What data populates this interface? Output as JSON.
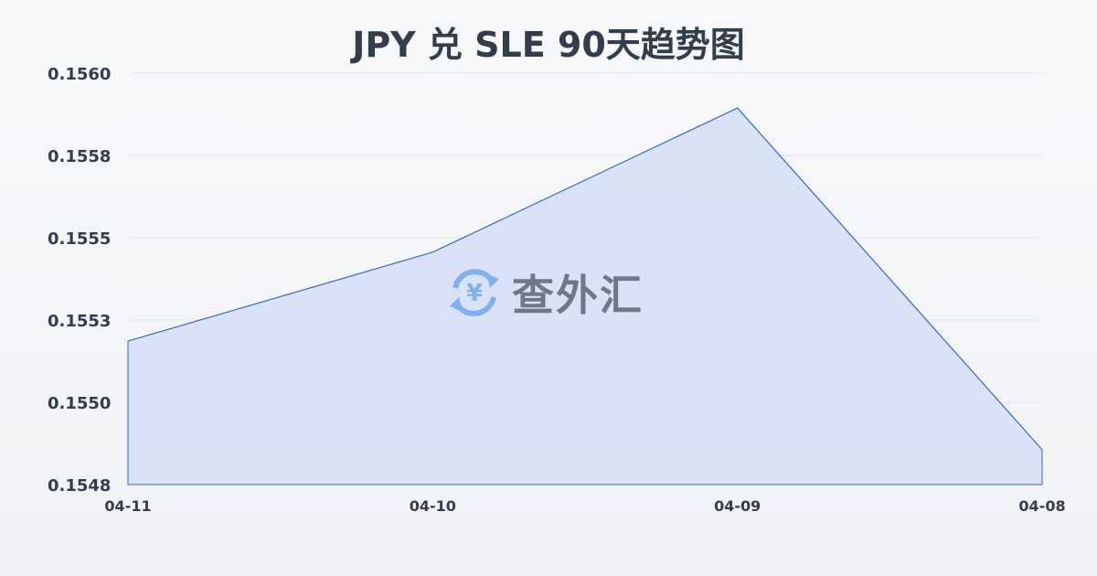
{
  "chart_data": {
    "type": "area",
    "title": "JPY 兑 SLE 90天趋势图",
    "xlabel": "",
    "ylabel": "",
    "categories": [
      "04-11",
      "04-10",
      "04-09",
      "04-08"
    ],
    "values": [
      0.155186,
      0.155456,
      0.155894,
      0.154856
    ],
    "ylim": [
      0.15475,
      0.156
    ],
    "yticks": [
      {
        "value": 0.156,
        "label": "0.1560"
      },
      {
        "value": 0.15575,
        "label": "0.1558"
      },
      {
        "value": 0.1555,
        "label": "0.1555"
      },
      {
        "value": 0.15525,
        "label": "0.1553"
      },
      {
        "value": 0.155,
        "label": "0.1550"
      },
      {
        "value": 0.15475,
        "label": "0.1548"
      }
    ],
    "grid": true,
    "legend": "none",
    "colors": {
      "line": "#3a66c8",
      "fill": "#d6e0f5",
      "grid": "#e3e6ea",
      "text": "#333d4d"
    }
  },
  "watermark": {
    "text": "查外汇",
    "icon": "yen-exchange-icon",
    "icon_color": "#7fb0f0"
  }
}
